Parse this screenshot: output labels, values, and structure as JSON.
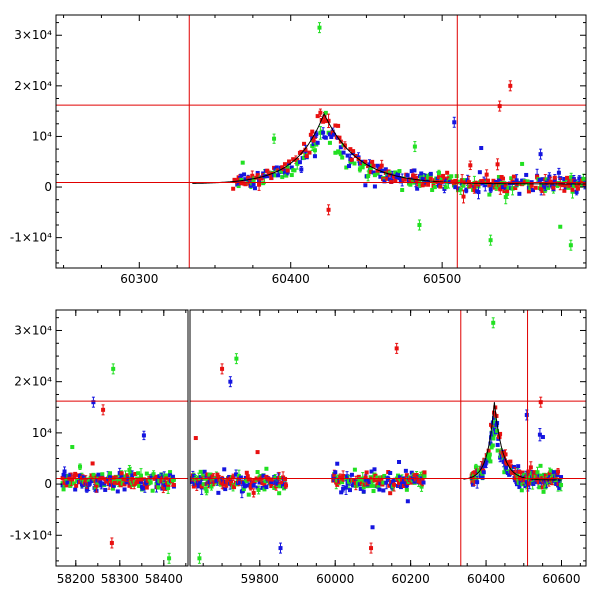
{
  "colors": {
    "green": "#22e022",
    "blue": "#1515e0",
    "red": "#e81010",
    "reference_lines": "#e00000"
  },
  "chart_data": [
    {
      "type": "scatter",
      "panel": "top",
      "xlim": [
        60245,
        60595
      ],
      "ylim": [
        -16000,
        34000
      ],
      "x_ticks": [
        60300,
        60400,
        60500
      ],
      "y_ticks": [
        -10000,
        0,
        10000,
        20000,
        30000
      ],
      "y_tick_labels": [
        "-1×10⁴",
        "0",
        "10⁴",
        "2×10⁴",
        "3×10⁴"
      ],
      "hlines": [
        16200,
        900
      ],
      "vlines": [
        60333,
        60510
      ],
      "model_curve": {
        "peak_x": 60422,
        "peak_y": 14500,
        "rise_tau": 18,
        "fall_tau": 22,
        "baseline": 600
      },
      "series_color_order": [
        "green",
        "blue",
        "red"
      ],
      "notable_points": [
        {
          "color": "green",
          "x": 60419,
          "y": 31500
        },
        {
          "color": "red",
          "x": 60545,
          "y": 20000
        },
        {
          "color": "red",
          "x": 60538,
          "y": 16000
        },
        {
          "color": "blue",
          "x": 60508,
          "y": 12800
        },
        {
          "color": "blue",
          "x": 60565,
          "y": 6500
        },
        {
          "color": "green",
          "x": 60532,
          "y": -10500
        },
        {
          "color": "green",
          "x": 60585,
          "y": -11500
        },
        {
          "color": "green",
          "x": 60485,
          "y": -7500
        },
        {
          "color": "red",
          "x": 60425,
          "y": -4500
        },
        {
          "color": "green",
          "x": 60482,
          "y": 8000
        }
      ]
    },
    {
      "type": "scatter",
      "panel": "bottom",
      "broken_x_axis": true,
      "segments": [
        {
          "xlim": [
            58155,
            58455
          ],
          "x_ticks": [
            58200,
            58300,
            58400
          ],
          "data_range": [
            58170,
            58425
          ]
        },
        {
          "xlim": [
            59615,
            60665
          ],
          "x_ticks": [
            59800,
            60000,
            60200,
            60400,
            60600
          ],
          "data_range": [
            59620,
            59870
          ]
        },
        {
          "xlim": [
            59615,
            60665
          ],
          "data_range": [
            59995,
            60240
          ]
        },
        {
          "xlim": [
            59615,
            60665
          ],
          "data_range": [
            60362,
            60600
          ]
        }
      ],
      "ylim": [
        -16000,
        34000
      ],
      "y_ticks": [
        -10000,
        0,
        10000,
        20000,
        30000
      ],
      "y_tick_labels": [
        "-1×10⁴",
        "0",
        "10⁴",
        "2×10⁴",
        "3×10⁴"
      ],
      "hlines": [
        16200,
        1100
      ],
      "vlines": [
        60333,
        60510
      ],
      "model_curve": {
        "peak_x": 60422,
        "peak_y": 16000,
        "rise_tau": 18,
        "fall_tau": 22,
        "baseline": 800
      },
      "notable_points": [
        {
          "color": "green",
          "x": 58285,
          "y": 22500
        },
        {
          "color": "blue",
          "x": 58240,
          "y": 16000
        },
        {
          "color": "red",
          "x": 58262,
          "y": 14500
        },
        {
          "color": "red",
          "x": 58282,
          "y": -11500
        },
        {
          "color": "green",
          "x": 58412,
          "y": -14500
        },
        {
          "color": "red",
          "x": 59700,
          "y": 22500
        },
        {
          "color": "green",
          "x": 59738,
          "y": 24500
        },
        {
          "color": "blue",
          "x": 59722,
          "y": 20000
        },
        {
          "color": "red",
          "x": 60163,
          "y": 26500
        },
        {
          "color": "red",
          "x": 60095,
          "y": -12500
        },
        {
          "color": "blue",
          "x": 59855,
          "y": -12500
        },
        {
          "color": "green",
          "x": 59640,
          "y": -14500
        },
        {
          "color": "green",
          "x": 60419,
          "y": 31500
        },
        {
          "color": "red",
          "x": 60545,
          "y": 16000
        },
        {
          "color": "blue",
          "x": 60508,
          "y": 13500
        }
      ]
    }
  ]
}
